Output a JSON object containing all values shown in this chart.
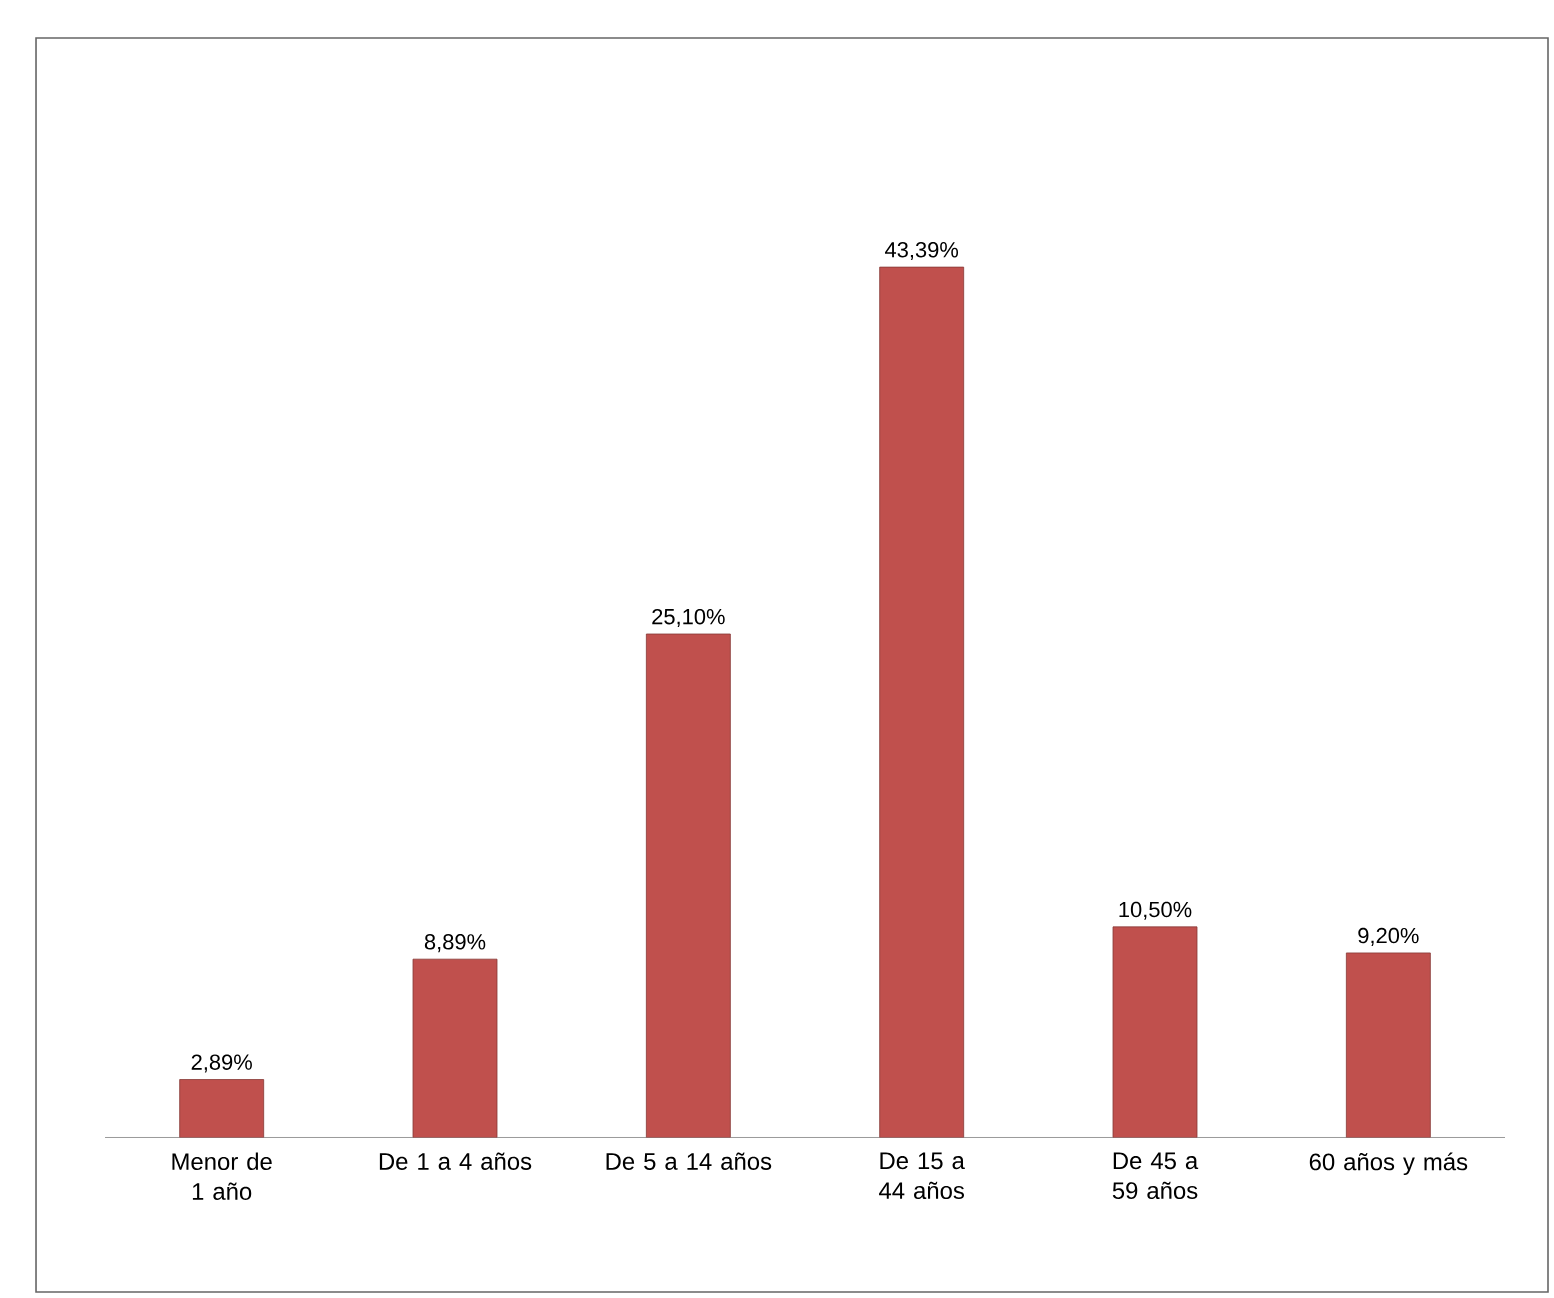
{
  "chart_data": {
    "type": "bar",
    "categories": [
      "Menor de 1 año",
      "De 1 a 4 años",
      "De 5 a 14 años",
      "De 15 a 44 años",
      "De 45 a 59 años",
      "60 años y más"
    ],
    "values": [
      2.89,
      8.89,
      25.1,
      43.39,
      10.5,
      9.2
    ],
    "value_labels": [
      "2,89%",
      "8,89%",
      "25,10%",
      "43,39%",
      "10,50%",
      "9,20%"
    ],
    "color": "#c0504d"
  }
}
